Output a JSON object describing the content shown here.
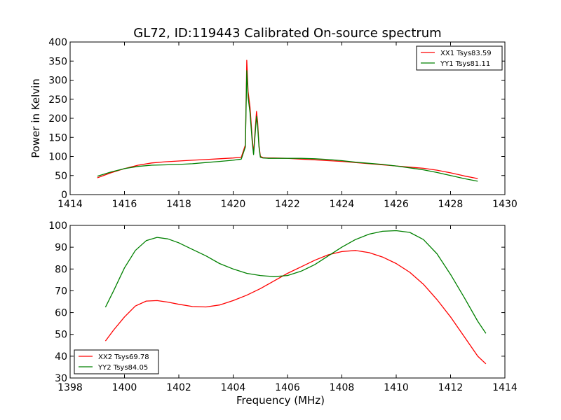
{
  "title": "GL72, ID:119443 Calibrated On-source spectrum",
  "colors": {
    "xx": "#ff0000",
    "yy": "#008000"
  },
  "chart_data": [
    {
      "type": "line",
      "ylabel": "Power in Kelvin",
      "xlabel": "",
      "xlim": [
        1414,
        1430
      ],
      "ylim": [
        0,
        400
      ],
      "xticks": [
        1414,
        1416,
        1418,
        1420,
        1422,
        1424,
        1426,
        1428,
        1430
      ],
      "yticks": [
        0,
        50,
        100,
        150,
        200,
        250,
        300,
        350,
        400
      ],
      "legend_position": "top-right",
      "series": [
        {
          "name": "XX1 Tsys83.59",
          "color": "#ff0000",
          "x": [
            1415,
            1415.5,
            1416,
            1416.5,
            1417,
            1417.5,
            1418,
            1418.5,
            1419,
            1419.5,
            1420,
            1420.3,
            1420.45,
            1420.5,
            1420.55,
            1420.62,
            1420.7,
            1420.75,
            1420.8,
            1420.86,
            1420.9,
            1420.95,
            1421.0,
            1421.1,
            1421.3,
            1421.5,
            1422,
            1422.5,
            1423,
            1423.5,
            1424,
            1424.5,
            1425,
            1425.5,
            1426,
            1426.5,
            1427,
            1427.5,
            1428,
            1428.5,
            1429
          ],
          "y": [
            44,
            57,
            68,
            77,
            83,
            86,
            88,
            90,
            92,
            94,
            96,
            98,
            130,
            352,
            270,
            230,
            150,
            108,
            160,
            218,
            190,
            130,
            100,
            97,
            96,
            96,
            95,
            93,
            91,
            89,
            87,
            84,
            81,
            78,
            75,
            72,
            69,
            64,
            57,
            49,
            42
          ]
        },
        {
          "name": "YY1 Tsys81.11",
          "color": "#008000",
          "x": [
            1415,
            1415.5,
            1416,
            1416.5,
            1417,
            1417.5,
            1418,
            1418.5,
            1419,
            1419.5,
            1420,
            1420.3,
            1420.45,
            1420.5,
            1420.55,
            1420.62,
            1420.7,
            1420.75,
            1420.8,
            1420.86,
            1420.9,
            1420.95,
            1421.0,
            1421.1,
            1421.3,
            1421.5,
            1422,
            1422.5,
            1423,
            1423.5,
            1424,
            1424.5,
            1425,
            1425.5,
            1426,
            1426.5,
            1427,
            1427.5,
            1428,
            1428.5,
            1429
          ],
          "y": [
            48,
            59,
            68,
            74,
            77,
            78,
            79,
            81,
            84,
            87,
            90,
            93,
            125,
            325,
            255,
            215,
            140,
            105,
            150,
            205,
            180,
            125,
            98,
            96,
            95,
            95,
            95,
            95,
            94,
            92,
            89,
            85,
            82,
            79,
            75,
            70,
            65,
            58,
            50,
            42,
            35
          ]
        }
      ]
    },
    {
      "type": "line",
      "xlabel": "Frequency (MHz)",
      "ylabel": "",
      "xlim": [
        1398,
        1414
      ],
      "ylim": [
        30,
        100
      ],
      "xticks": [
        1398,
        1400,
        1402,
        1404,
        1406,
        1408,
        1410,
        1412,
        1414
      ],
      "yticks": [
        30,
        40,
        50,
        60,
        70,
        80,
        90,
        100
      ],
      "legend_position": "bottom-left",
      "series": [
        {
          "name": "XX2 Tsys69.78",
          "color": "#ff0000",
          "x": [
            1399.3,
            1399.6,
            1400,
            1400.4,
            1400.8,
            1401.2,
            1401.6,
            1402,
            1402.5,
            1403,
            1403.5,
            1404,
            1404.5,
            1405,
            1405.5,
            1406,
            1406.5,
            1407,
            1407.5,
            1408,
            1408.5,
            1409,
            1409.5,
            1410,
            1410.5,
            1411,
            1411.5,
            1412,
            1412.5,
            1413,
            1413.3
          ],
          "y": [
            47,
            52,
            58,
            63,
            65.3,
            65.5,
            64.8,
            63.8,
            62.8,
            62.6,
            63.5,
            65.5,
            68,
            71,
            74.5,
            78,
            81,
            84,
            86.5,
            88,
            88.5,
            87.5,
            85.5,
            82.5,
            78.5,
            73,
            66,
            58,
            49,
            40,
            36.5
          ]
        },
        {
          "name": "YY2 Tsys84.05",
          "color": "#008000",
          "x": [
            1399.3,
            1399.6,
            1400,
            1400.4,
            1400.8,
            1401.2,
            1401.6,
            1402,
            1402.5,
            1403,
            1403.5,
            1404,
            1404.5,
            1405,
            1405.5,
            1406,
            1406.5,
            1407,
            1407.5,
            1408,
            1408.5,
            1409,
            1409.5,
            1410,
            1410.5,
            1411,
            1411.5,
            1412,
            1412.5,
            1413,
            1413.3
          ],
          "y": [
            62.5,
            70,
            80.5,
            88.5,
            93,
            94.5,
            93.8,
            92,
            89,
            86,
            82.5,
            80,
            78,
            77,
            76.5,
            77,
            79,
            82,
            86,
            90,
            93.5,
            96,
            97.3,
            97.6,
            96.8,
            93.5,
            87,
            77.5,
            67,
            56,
            50.5
          ]
        }
      ]
    }
  ]
}
